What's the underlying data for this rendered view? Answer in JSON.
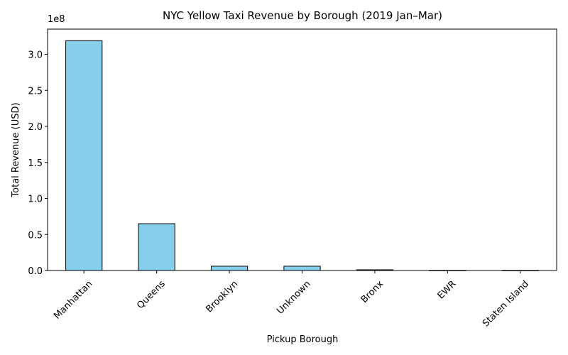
{
  "chart_data": {
    "type": "bar",
    "title": "NYC Yellow Taxi Revenue by Borough (2019 Jan–Mar)",
    "xlabel": "Pickup Borough",
    "ylabel": "Total Revenue (USD)",
    "categories": [
      "Manhattan",
      "Queens",
      "Brooklyn",
      "Unknown",
      "Bronx",
      "EWR",
      "Staten Island"
    ],
    "values": [
      319000000,
      65000000,
      6000000,
      6000000,
      1000000,
      150000,
      80000
    ],
    "ylim": [
      0,
      335000000
    ],
    "yticks": [
      0,
      50000000,
      100000000,
      150000000,
      200000000,
      250000000,
      300000000
    ],
    "ytick_labels": [
      "0.0",
      "0.5",
      "1.0",
      "1.5",
      "2.0",
      "2.5",
      "3.0"
    ],
    "y_offset_label": "1e8",
    "grid": false,
    "bar_color": "#87ceeb",
    "bar_edge_color": "#000000"
  }
}
